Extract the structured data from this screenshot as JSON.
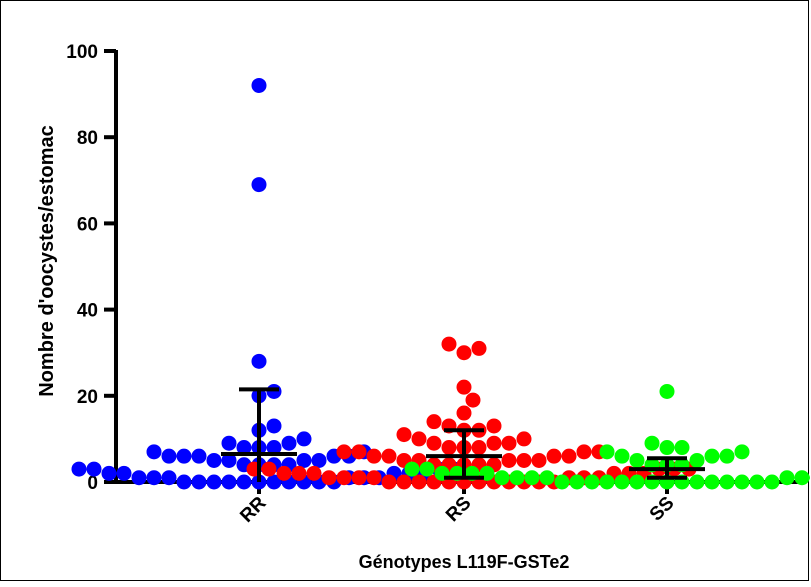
{
  "chart_data": {
    "type": "scatter",
    "subtype": "dot-plot-mean-sd",
    "xlabel": "Génotypes L119F-GSTe2",
    "ylabel": "Nombre d'oocystes/estomac",
    "ylim": [
      0,
      100
    ],
    "yticks": [
      0,
      20,
      40,
      60,
      80,
      100
    ],
    "categories": [
      "RR",
      "RS",
      "SS"
    ],
    "grid": false,
    "legend": "none",
    "series": [
      {
        "category": "RR",
        "color": "#0000ff",
        "mean": 6.5,
        "sd_low": 0,
        "sd_high": 21.5,
        "values": [
          92,
          69,
          28,
          21,
          20,
          13,
          12,
          10,
          9,
          9,
          8,
          8,
          8,
          7,
          7,
          6,
          6,
          6,
          6,
          6,
          5,
          5,
          5,
          5,
          4,
          4,
          4,
          4,
          3,
          3,
          3,
          3,
          2,
          2,
          2,
          2,
          2,
          1,
          1,
          1,
          1,
          1,
          1,
          0,
          0,
          0,
          0,
          0,
          0,
          0,
          0,
          0,
          0,
          0
        ]
      },
      {
        "category": "RS",
        "color": "#ff0000",
        "mean": 6,
        "sd_low": 1,
        "sd_high": 12,
        "values": [
          32,
          31,
          30,
          22,
          19,
          16,
          14,
          13,
          13,
          12,
          12,
          11,
          10,
          10,
          9,
          9,
          9,
          8,
          8,
          8,
          7,
          7,
          7,
          7,
          6,
          6,
          6,
          6,
          5,
          5,
          5,
          5,
          5,
          4,
          4,
          4,
          4,
          4,
          3,
          3,
          3,
          3,
          3,
          2,
          2,
          2,
          2,
          2,
          2,
          1,
          1,
          1,
          1,
          1,
          1,
          1,
          0,
          0,
          0,
          0,
          0,
          0,
          0,
          0,
          0,
          0,
          0,
          0
        ]
      },
      {
        "category": "SS",
        "color": "#00ff00",
        "mean": 3,
        "sd_low": 1,
        "sd_high": 5.5,
        "values": [
          21,
          9,
          8,
          8,
          7,
          7,
          6,
          6,
          6,
          5,
          5,
          4,
          4,
          4,
          3,
          3,
          3,
          3,
          3,
          2,
          2,
          2,
          2,
          2,
          2,
          2,
          1,
          1,
          1,
          1,
          1,
          1,
          1,
          1,
          1,
          0,
          0,
          0,
          0,
          0,
          0,
          0,
          0,
          0,
          0,
          0,
          0,
          0,
          0,
          0
        ]
      }
    ]
  }
}
